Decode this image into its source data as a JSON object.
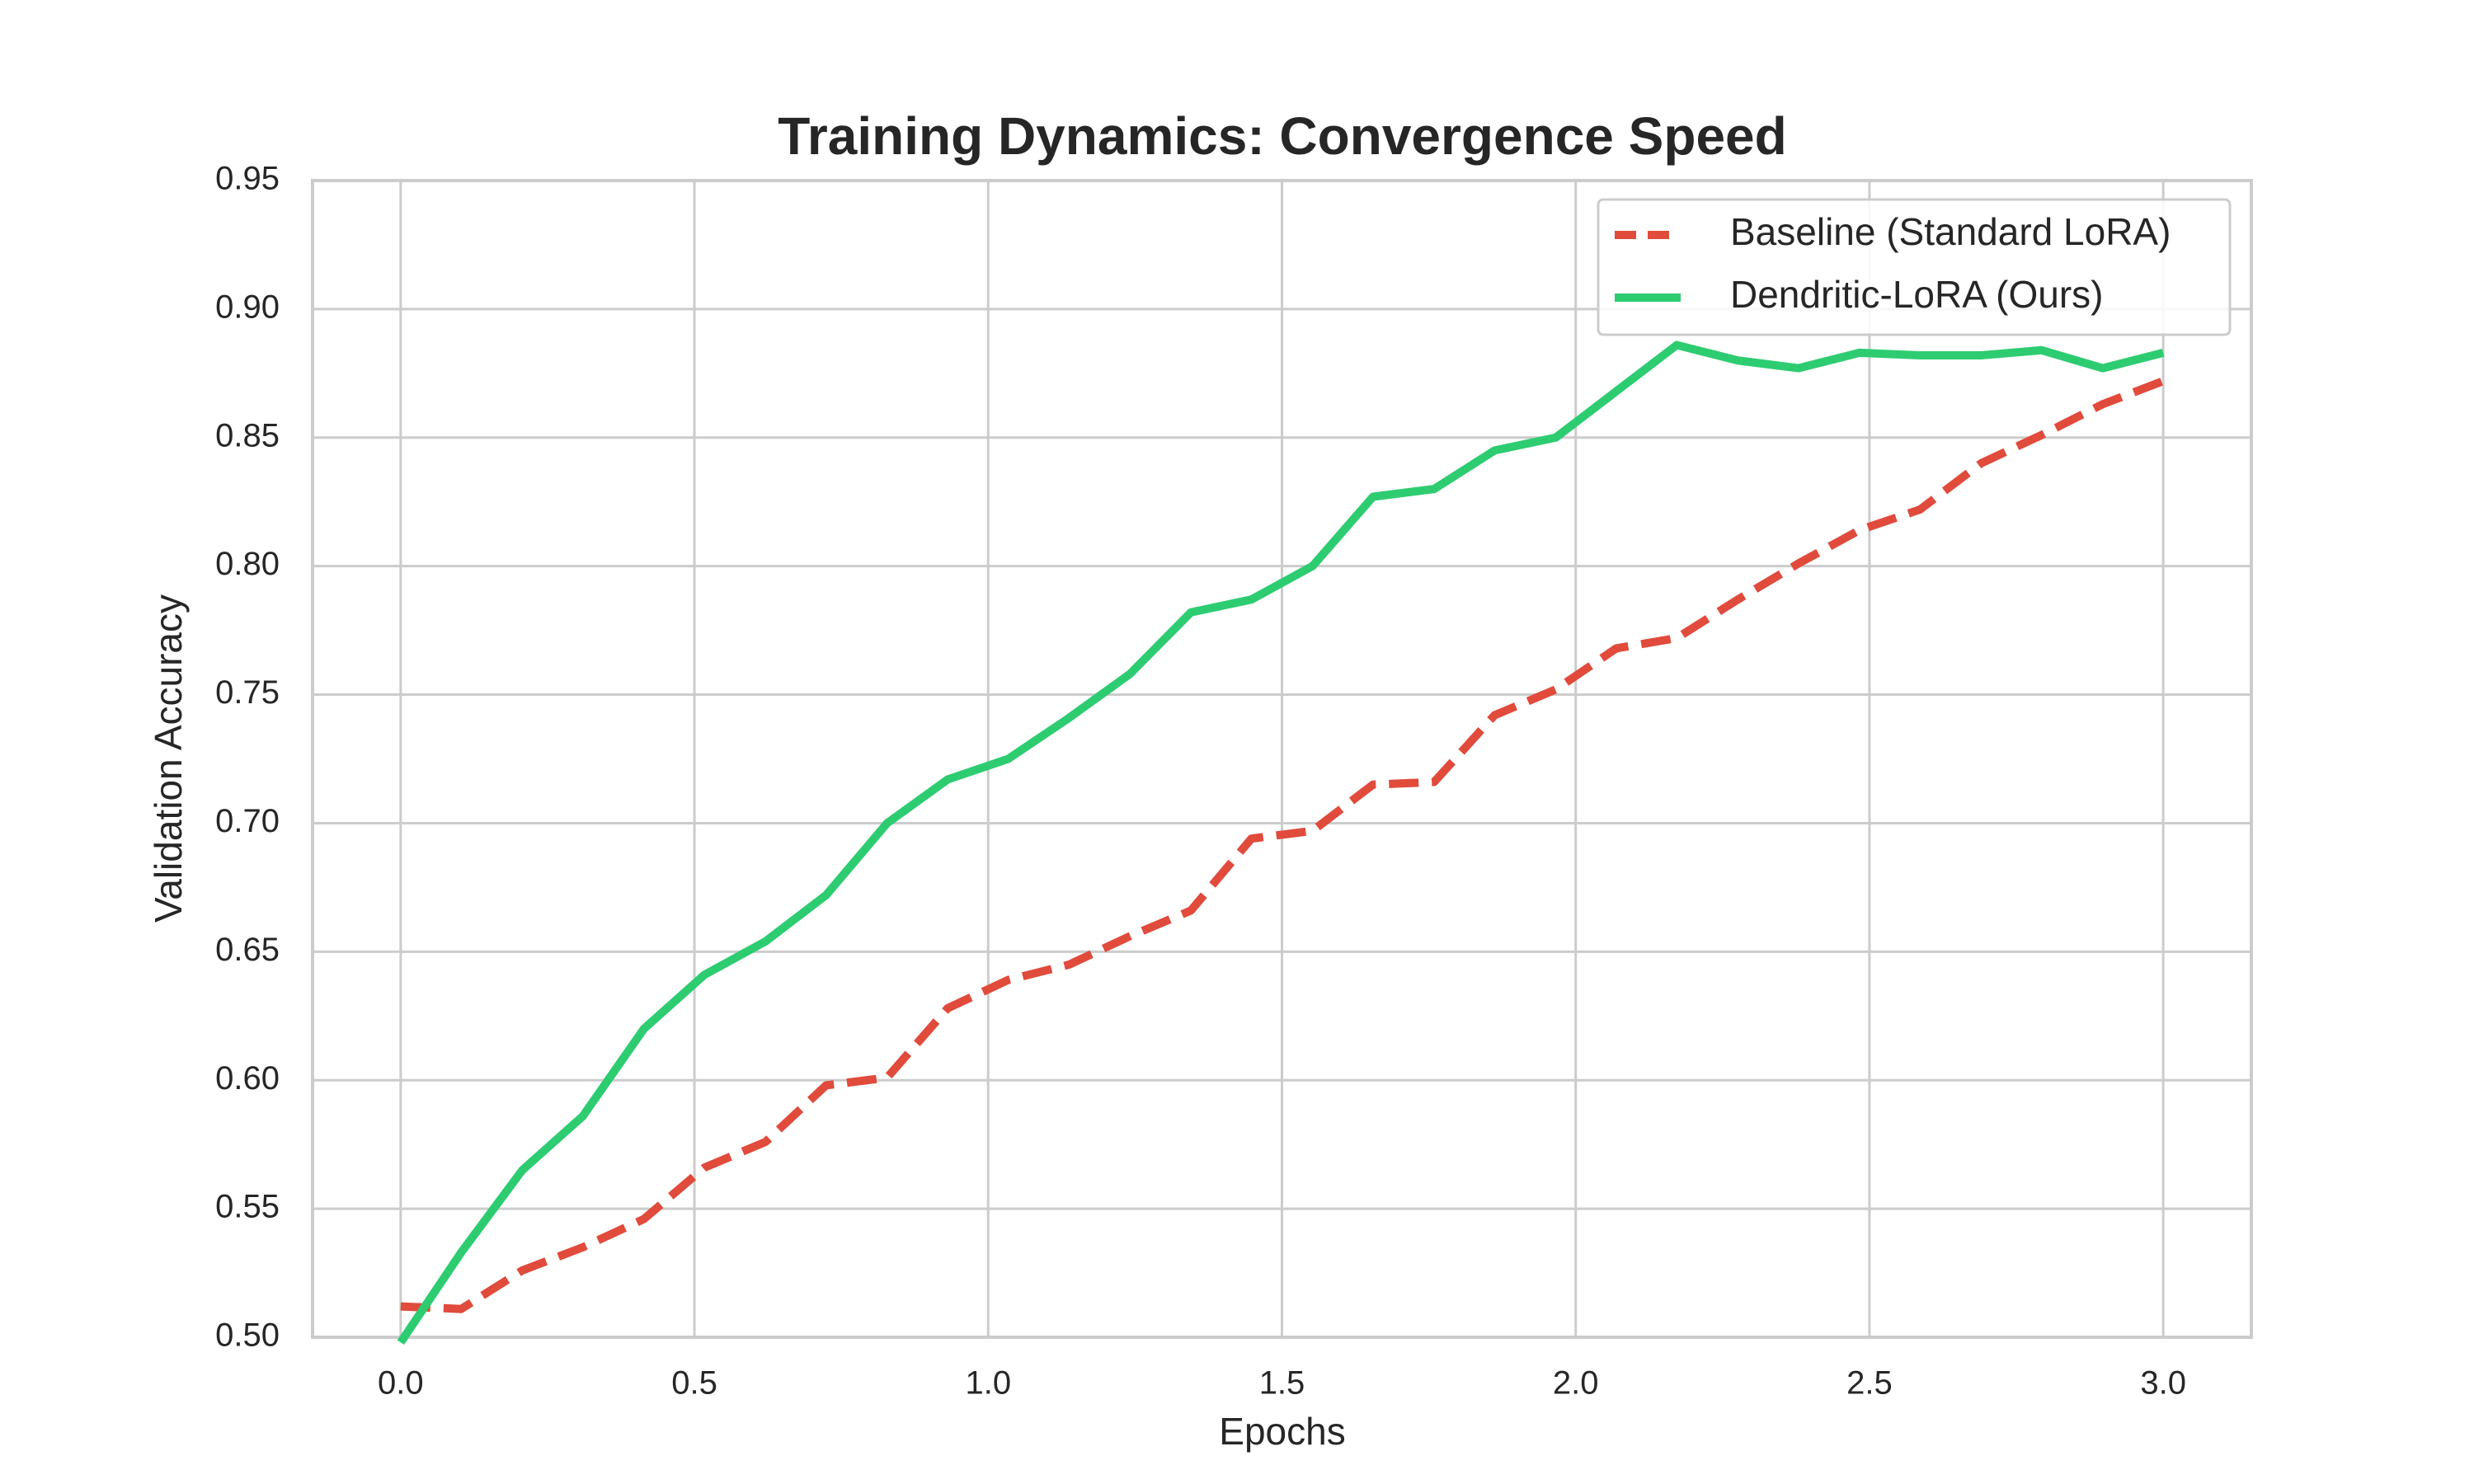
{
  "chart_data": {
    "type": "line",
    "title": "Training Dynamics: Convergence Speed",
    "xlabel": "Epochs",
    "ylabel": "Validation Accuracy",
    "x": [
      0,
      0.103,
      0.207,
      0.31,
      0.414,
      0.517,
      0.621,
      0.724,
      0.828,
      0.931,
      1.034,
      1.138,
      1.241,
      1.345,
      1.448,
      1.552,
      1.655,
      1.759,
      1.862,
      1.966,
      2.069,
      2.172,
      2.276,
      2.379,
      2.483,
      2.586,
      2.69,
      2.793,
      2.897,
      3.0
    ],
    "series": [
      {
        "name": "Baseline (Standard LoRA)",
        "color": "#e04b3c",
        "dashed": true,
        "values": [
          0.512,
          0.511,
          0.526,
          0.535,
          0.546,
          0.566,
          0.576,
          0.598,
          0.601,
          0.628,
          0.639,
          0.645,
          0.656,
          0.666,
          0.694,
          0.697,
          0.715,
          0.716,
          0.742,
          0.752,
          0.768,
          0.772,
          0.787,
          0.801,
          0.814,
          0.822,
          0.84,
          0.851,
          0.863,
          0.872
        ]
      },
      {
        "name": "Dendritic-LoRA (Ours)",
        "color": "#2ecc71",
        "dashed": false,
        "values": [
          0.498,
          0.533,
          0.565,
          0.586,
          0.62,
          0.641,
          0.654,
          0.672,
          0.7,
          0.717,
          0.725,
          0.741,
          0.758,
          0.782,
          0.787,
          0.8,
          0.827,
          0.83,
          0.845,
          0.85,
          0.868,
          0.886,
          0.88,
          0.877,
          0.883,
          0.882,
          0.882,
          0.884,
          0.877,
          0.883
        ]
      }
    ],
    "xlim": [
      -0.15,
      3.15
    ],
    "ylim": [
      0.5,
      0.95
    ],
    "xticks": [
      {
        "value": 0,
        "label": "0.0"
      },
      0.5,
      {
        "value": 1,
        "label": "1.0"
      },
      1.5,
      {
        "value": 2,
        "label": "2.0"
      },
      2.5,
      {
        "value": 3,
        "label": "3.0"
      }
    ],
    "yticks": [
      {
        "value": 0.5,
        "label": "0.50"
      },
      0.55,
      {
        "value": 0.6,
        "label": "0.60"
      },
      0.65,
      {
        "value": 0.7,
        "label": "0.70"
      },
      0.75,
      {
        "value": 0.8,
        "label": "0.80"
      },
      0.85,
      {
        "value": 0.9,
        "label": "0.90"
      },
      0.95
    ],
    "grid": true,
    "legend": "upper right"
  }
}
